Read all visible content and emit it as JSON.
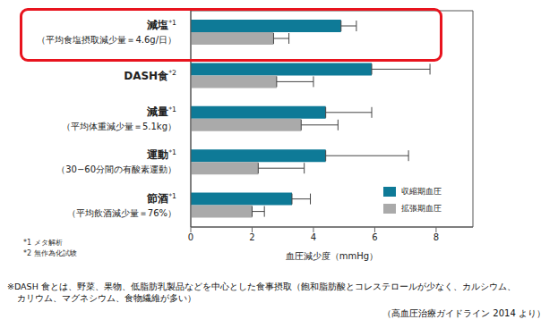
{
  "chart_data": {
    "type": "bar",
    "orientation": "horizontal",
    "categories": [
      "減塩*1\n（平均食塩摂取減少量＝4.6g/日）",
      "DASH食*2",
      "減量*1\n（平均体重減少量＝5.1kg）",
      "運動*1\n（30−60分間の有酸素運動）",
      "節酒*1\n（平均飲酒減少量＝76%）"
    ],
    "series": [
      {
        "name": "収縮期血圧",
        "color": "#0e7a97",
        "values": [
          4.9,
          5.9,
          4.4,
          4.4,
          3.3
        ],
        "errors": [
          0.5,
          1.9,
          1.5,
          2.7,
          0.6
        ]
      },
      {
        "name": "拡張期血圧",
        "color": "#aaaaaa",
        "values": [
          2.7,
          2.8,
          3.6,
          2.2,
          2.0
        ],
        "errors": [
          0.5,
          1.2,
          1.2,
          1.5,
          0.4
        ]
      }
    ],
    "x_label": "血圧減少度（mmHg）",
    "xlim": [
      0,
      9.2
    ],
    "xticks": [
      0,
      2,
      4,
      6,
      8
    ],
    "grid": false,
    "legend": "lower right",
    "footnotes": [
      "*1 メタ解析",
      "*2 無作為化試験"
    ],
    "note": [
      "※DASH 食とは、野菜、果物、低脂肪乳製品などを中心とした食事摂取（飽和脂肪酸とコレステロールが少なく、カルシウム、",
      "カリウム、マグネシウム、食物繊維が多い）"
    ],
    "source": "（高血圧治療ガイドライン 2014 より）"
  }
}
